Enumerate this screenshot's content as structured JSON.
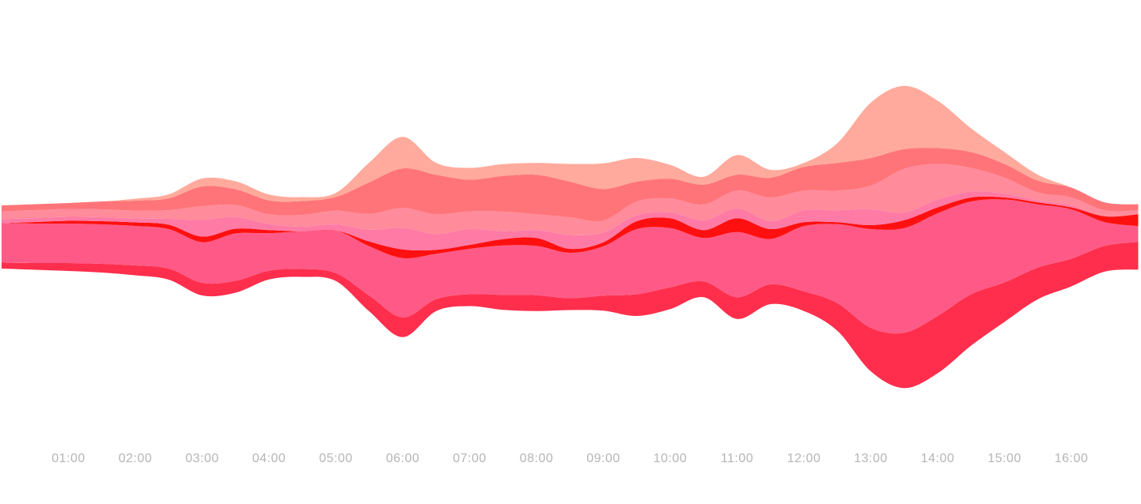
{
  "chart_data": {
    "type": "area",
    "subtype": "streamgraph",
    "grid": false,
    "legend": "none",
    "x_tick_labels": [
      "01:00",
      "02:00",
      "03:00",
      "04:00",
      "05:00",
      "06:00",
      "07:00",
      "08:00",
      "09:00",
      "10:00",
      "11:00",
      "12:00",
      "13:00",
      "14:00",
      "15:00",
      "16:00"
    ],
    "x": [
      "00:00",
      "00:30",
      "01:00",
      "01:30",
      "02:00",
      "02:30",
      "03:00",
      "03:30",
      "04:00",
      "04:30",
      "05:00",
      "05:30",
      "06:00",
      "06:30",
      "07:00",
      "07:30",
      "08:00",
      "08:30",
      "09:00",
      "09:30",
      "10:00",
      "10:30",
      "11:00",
      "11:30",
      "12:00",
      "12:30",
      "13:00",
      "13:30",
      "14:00",
      "14:30",
      "15:00",
      "15:30",
      "16:00",
      "16:30",
      "17:00"
    ],
    "series": [
      {
        "color": "#ff2e4c",
        "values": [
          15,
          17,
          20,
          22,
          25,
          28,
          32,
          30,
          22,
          20,
          20,
          40,
          50,
          30,
          30,
          38,
          40,
          30,
          38,
          55,
          55,
          40,
          55,
          50,
          50,
          70,
          110,
          140,
          145,
          130,
          100,
          80,
          70,
          65,
          70
        ]
      },
      {
        "color": "#ff5a87",
        "values": [
          100,
          100,
          100,
          100,
          100,
          100,
          103,
          120,
          95,
          95,
          108,
          125,
          150,
          115,
          115,
          125,
          125,
          115,
          125,
          165,
          150,
          110,
          165,
          115,
          165,
          200,
          250,
          265,
          260,
          235,
          210,
          160,
          125,
          60,
          40
        ]
      },
      {
        "color": "#ff1010",
        "values": [
          0,
          4,
          7,
          8,
          9,
          11,
          14,
          12,
          8,
          0,
          0,
          12,
          22,
          10,
          10,
          16,
          20,
          10,
          10,
          20,
          25,
          20,
          35,
          25,
          10,
          5,
          10,
          20,
          15,
          10,
          5,
          5,
          5,
          15,
          30
        ]
      },
      {
        "color": "#ff7aa5",
        "values": [
          10,
          10,
          10,
          10,
          10,
          15,
          42,
          30,
          15,
          12,
          15,
          30,
          55,
          40,
          40,
          20,
          20,
          35,
          25,
          15,
          15,
          25,
          25,
          20,
          30,
          30,
          40,
          20,
          20,
          15,
          10,
          5,
          5,
          0,
          0
        ]
      },
      {
        "color": "#ff8b9b",
        "values": [
          20,
          20,
          20,
          20,
          20,
          22,
          35,
          30,
          25,
          30,
          35,
          40,
          50,
          50,
          45,
          50,
          40,
          45,
          30,
          35,
          35,
          40,
          45,
          60,
          50,
          50,
          60,
          110,
          90,
          60,
          40,
          20,
          20,
          15,
          10
        ]
      },
      {
        "color": "#ff7479",
        "values": [
          15,
          15,
          15,
          20,
          25,
          30,
          50,
          40,
          35,
          35,
          35,
          80,
          100,
          100,
          80,
          90,
          100,
          90,
          80,
          50,
          50,
          50,
          40,
          50,
          60,
          70,
          70,
          50,
          40,
          40,
          35,
          30,
          25,
          20,
          15
        ]
      },
      {
        "color": "#ffaa9c",
        "values": [
          0,
          0,
          0,
          0,
          5,
          10,
          20,
          20,
          15,
          10,
          10,
          50,
          80,
          30,
          30,
          30,
          30,
          45,
          65,
          60,
          35,
          20,
          50,
          20,
          10,
          50,
          140,
          160,
          120,
          60,
          30,
          15,
          0,
          0,
          0
        ]
      }
    ]
  },
  "chart_colors": {
    "background": "#ffffff",
    "tick_label": "#b5b5b5"
  }
}
